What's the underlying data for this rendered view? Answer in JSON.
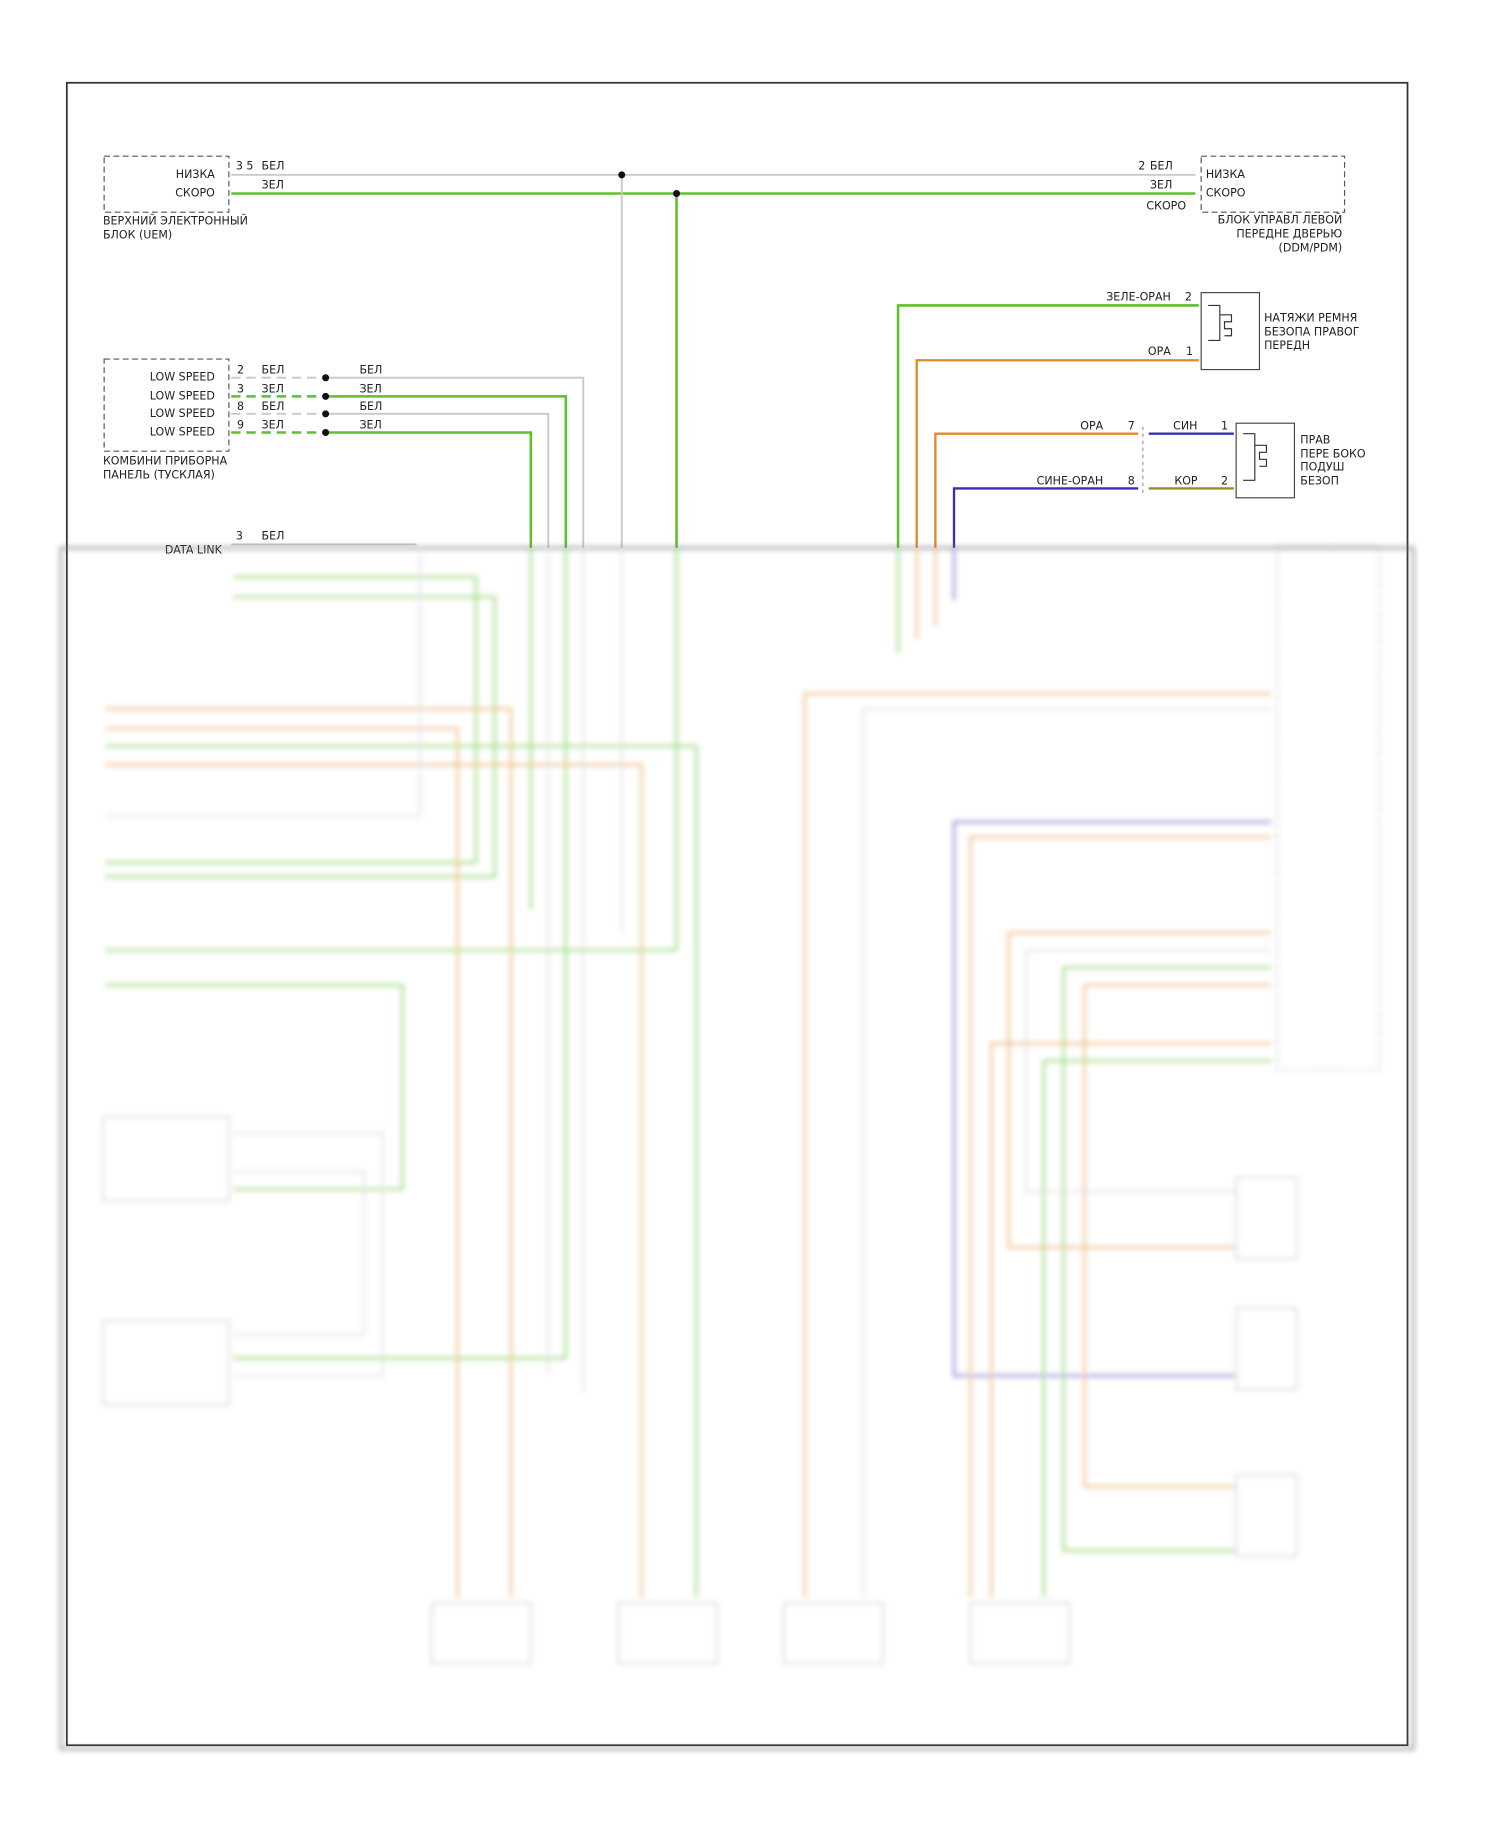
{
  "uem": {
    "label": [
      "ВЕРХНИЙ ЭЛЕКТРОННЫЙ",
      "БЛОК (UEM)"
    ],
    "pins": [
      "НИЗКА",
      "СКОРО"
    ],
    "pin_numbers": "3 5",
    "wires": [
      "БЕЛ",
      "ЗЕЛ"
    ]
  },
  "ddm": {
    "label": [
      "БЛОК УПРАВЛ ЛЕВОЙ",
      "ПЕРЕДНЕ ДВЕРЬЮ",
      "(DDM/PDM)"
    ],
    "pins": [
      "НИЗКА",
      "СКОРО"
    ],
    "pin_numbers": "2",
    "wires": [
      "БЕЛ",
      "ЗЕЛ"
    ],
    "side_label": "СКОРО"
  },
  "belt_tensioner": {
    "label": [
      "НАТЯЖИ РЕМНЯ",
      "БЕЗОПА ПРАВОГ",
      "ПЕРЕДН"
    ],
    "wires": [
      {
        "color_label": "ЗЕЛЕ-ОРАН",
        "pin": "2"
      },
      {
        "color_label": "ОРА",
        "pin": "1"
      }
    ]
  },
  "side_airbag": {
    "label": [
      "ПРАВ",
      "ПЕРЕ БОКО",
      "ПОДУШ",
      "БЕЗОП"
    ],
    "wires": [
      {
        "in_label": "ОРА",
        "in_pin": "7",
        "out_label": "СИН",
        "out_pin": "1"
      },
      {
        "in_label": "СИНЕ-ОРАН",
        "in_pin": "8",
        "out_label": "КОР",
        "out_pin": "2"
      }
    ]
  },
  "cluster": {
    "label": [
      "КОМБИНИ ПРИБОРНА",
      "ПАНЕЛЬ (ТУСКЛАЯ)"
    ],
    "pins": [
      {
        "name": "LOW SPEED",
        "number": "2",
        "wire": "БЕЛ",
        "wire_out": "БЕЛ"
      },
      {
        "name": "LOW SPEED",
        "number": "3",
        "wire": "ЗЕЛ",
        "wire_out": "ЗЕЛ"
      },
      {
        "name": "LOW SPEED",
        "number": "8",
        "wire": "БЕЛ",
        "wire_out": "БЕЛ"
      },
      {
        "name": "LOW SPEED",
        "number": "9",
        "wire": "ЗЕЛ",
        "wire_out": "ЗЕЛ"
      }
    ]
  },
  "data_link": {
    "label": "DATA LINK",
    "pin": "3",
    "wire": "БЕЛ"
  }
}
